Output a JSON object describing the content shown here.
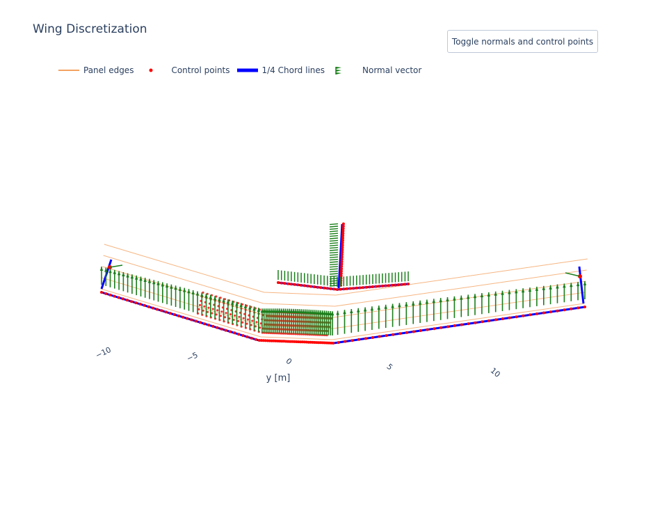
{
  "title": "Wing Discretization",
  "toggle_button": {
    "label": "Toggle normals and control points"
  },
  "legend": [
    {
      "label": "Panel edges",
      "color": "#f4a261"
    },
    {
      "label": "Control points",
      "color": "#ff0000"
    },
    {
      "label": "1/4 Chord lines",
      "color": "#0000ff"
    },
    {
      "label": "Normal vector",
      "color": "#1a7f1a"
    }
  ],
  "chart_data": {
    "type": "scatter",
    "title": "Wing Discretization",
    "axis": {
      "label": "y [m]",
      "ticks": [
        -10,
        -5,
        0,
        5,
        10
      ]
    },
    "series": [
      {
        "name": "Panel edges",
        "color": "#f4a261"
      },
      {
        "name": "Control points",
        "color": "#ff0000"
      },
      {
        "name": "1/4 Chord lines",
        "color": "#0000ff"
      },
      {
        "name": "Normal vector",
        "color": "#1a7f1a"
      }
    ]
  }
}
